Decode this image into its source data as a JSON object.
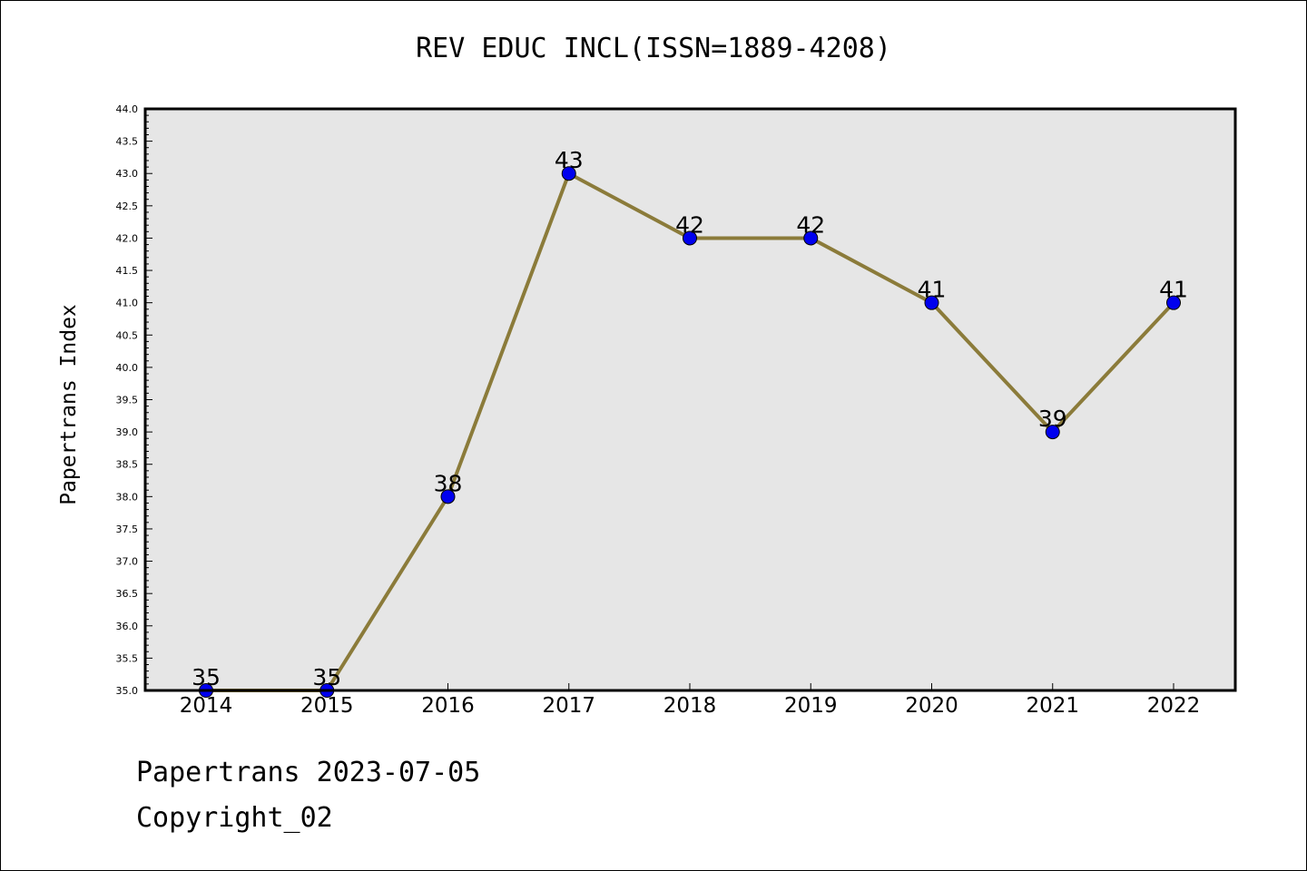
{
  "title": "REV EDUC INCL(ISSN=1889-4208)",
  "footer": {
    "date_line": "Papertrans 2023-07-05",
    "copyright_line": "Copyright_02"
  },
  "colors": {
    "line": "#8B7B3A",
    "marker": "#0000EE",
    "plot_background": "#E6E6E6",
    "axis": "#000000"
  },
  "chart_data": {
    "type": "line",
    "title": "REV EDUC INCL(ISSN=1889-4208)",
    "xlabel": "",
    "ylabel": "Papertrans Index",
    "categories": [
      "2014",
      "2015",
      "2016",
      "2017",
      "2018",
      "2019",
      "2020",
      "2021",
      "2022"
    ],
    "series": [
      {
        "values": [
          35,
          35,
          38,
          43,
          42,
          42,
          41,
          39,
          41
        ],
        "data_labels": [
          "35",
          "35",
          "38",
          "43",
          "42",
          "42",
          "41",
          "39",
          "41"
        ]
      }
    ],
    "ylim": [
      35.0,
      44.0
    ],
    "yticks": [
      "35.0",
      "35.5",
      "36.0",
      "36.5",
      "37.0",
      "37.5",
      "38.0",
      "38.5",
      "39.0",
      "39.5",
      "40.0",
      "40.5",
      "41.0",
      "41.5",
      "42.0",
      "42.5",
      "43.0",
      "43.5",
      "44.0"
    ],
    "grid": false,
    "legend": "none"
  }
}
